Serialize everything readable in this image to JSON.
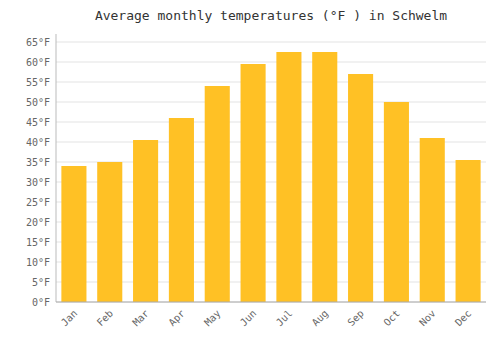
{
  "chart_data": {
    "type": "bar",
    "title": "Average monthly temperatures (°F ) in Schwelm",
    "categories": [
      "Jan",
      "Feb",
      "Mar",
      "Apr",
      "May",
      "Jun",
      "Jul",
      "Aug",
      "Sep",
      "Oct",
      "Nov",
      "Dec"
    ],
    "values": [
      34,
      35,
      40.5,
      46,
      54,
      59.5,
      62.5,
      62.5,
      57,
      50,
      41,
      35.5
    ],
    "color": "#FFC125",
    "ylim": [
      0,
      67
    ],
    "yticks": [
      {
        "value": 0,
        "label": "0°F"
      },
      {
        "value": 5,
        "label": "5°F"
      },
      {
        "value": 10,
        "label": "10°F"
      },
      {
        "value": 15,
        "label": "15°F"
      },
      {
        "value": 20,
        "label": "20°F"
      },
      {
        "value": 25,
        "label": "25°F"
      },
      {
        "value": 30,
        "label": "30°F"
      },
      {
        "value": 35,
        "label": "35°F"
      },
      {
        "value": 40,
        "label": "40°F"
      },
      {
        "value": 45,
        "label": "45°F"
      },
      {
        "value": 50,
        "label": "50°F"
      },
      {
        "value": 55,
        "label": "55°F"
      },
      {
        "value": 60,
        "label": "60°F"
      },
      {
        "value": 65,
        "label": "65°F"
      }
    ],
    "grid": true
  }
}
